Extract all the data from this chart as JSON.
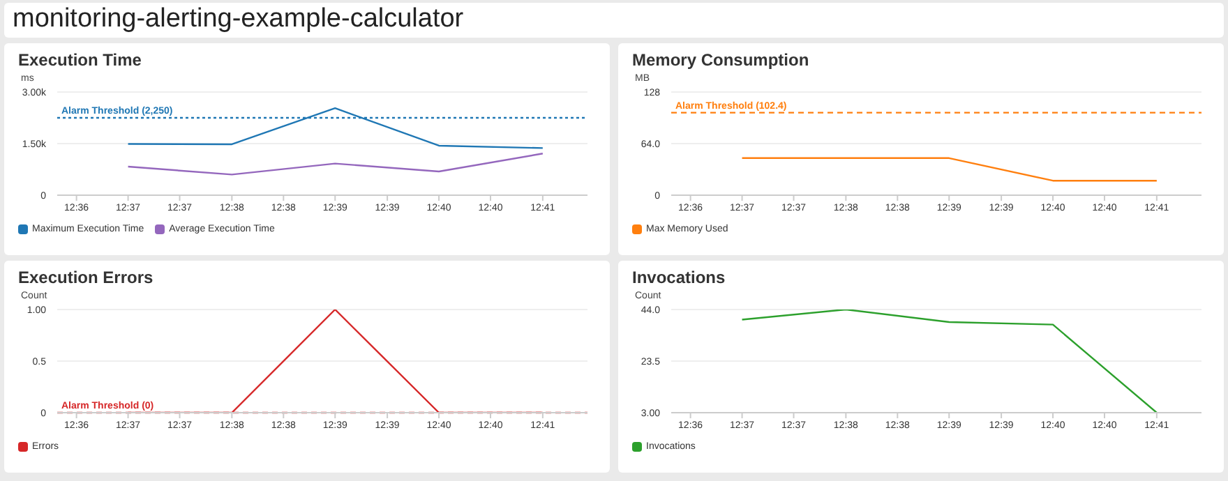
{
  "chart_data": [
    {
      "type": "line",
      "title": "Execution Time",
      "annotations": [
        "monitoring-alerting-example-calculator"
      ],
      "ylabel": "ms",
      "x": [
        12.6125,
        12.6292,
        12.6458,
        12.6625,
        12.6792
      ],
      "series": [
        {
          "name": "Maximum Execution Time",
          "color": "#1f77b4",
          "values": [
            1490,
            1480,
            2530,
            1440,
            1370
          ]
        },
        {
          "name": "Average Execution Time",
          "color": "#9467bd",
          "values": [
            830,
            600,
            920,
            690,
            1210
          ]
        }
      ],
      "xlim": [
        12.6011,
        12.6864
      ],
      "xticks": [
        {
          "value": 12.6042,
          "label": "12:36"
        },
        {
          "value": 12.6125,
          "label": "12:37"
        },
        {
          "value": 12.6208,
          "label": "12:37"
        },
        {
          "value": 12.6292,
          "label": "12:38"
        },
        {
          "value": 12.6375,
          "label": "12:38"
        },
        {
          "value": 12.6458,
          "label": "12:39"
        },
        {
          "value": 12.6542,
          "label": "12:39"
        },
        {
          "value": 12.6625,
          "label": "12:40"
        },
        {
          "value": 12.6708,
          "label": "12:40"
        },
        {
          "value": 12.6792,
          "label": "12:41"
        }
      ],
      "ylim": [
        0,
        3000
      ],
      "yticks": [
        0,
        {
          "value": 1500,
          "label": "1.50k"
        },
        {
          "value": 3000,
          "label": "3.00k"
        }
      ],
      "ref_lines": [
        {
          "axis": "y",
          "value": 2250,
          "label": "Alarm Threshold (2,250)",
          "color": "#1f77b4",
          "line_style": "dotted"
        }
      ],
      "grid": "y",
      "legend": "bottom left",
      "line_style": "solid"
    },
    {
      "type": "line",
      "title": "Memory Consumption",
      "ylabel": "MB",
      "x": [
        12.6125,
        12.6292,
        12.6458,
        12.6625,
        12.6792
      ],
      "series": [
        {
          "name": "Max Memory Used",
          "color": "#ff7f0e",
          "values": [
            46,
            46,
            46,
            18,
            18
          ]
        }
      ],
      "xlim": [
        12.6011,
        12.6864
      ],
      "xticks": [
        {
          "value": 12.6042,
          "label": "12:36"
        },
        {
          "value": 12.6125,
          "label": "12:37"
        },
        {
          "value": 12.6208,
          "label": "12:37"
        },
        {
          "value": 12.6292,
          "label": "12:38"
        },
        {
          "value": 12.6375,
          "label": "12:38"
        },
        {
          "value": 12.6458,
          "label": "12:39"
        },
        {
          "value": 12.6542,
          "label": "12:39"
        },
        {
          "value": 12.6625,
          "label": "12:40"
        },
        {
          "value": 12.6708,
          "label": "12:40"
        },
        {
          "value": 12.6792,
          "label": "12:41"
        }
      ],
      "ylim": [
        0,
        128
      ],
      "yticks": [
        0,
        {
          "value": 64,
          "label": "64.0"
        },
        128
      ],
      "ref_lines": [
        {
          "axis": "y",
          "value": 102.4,
          "label": "Alarm Threshold (102.4)",
          "color": "#ff7f0e",
          "line_style": "dashed"
        }
      ],
      "grid": "y",
      "legend": "bottom left",
      "line_style": "solid"
    },
    {
      "type": "line",
      "title": "Execution Errors",
      "ylabel": "Count",
      "x": [
        12.6125,
        12.6292,
        12.6458,
        12.6625,
        12.6792
      ],
      "series": [
        {
          "name": "Errors",
          "color": "#d62728",
          "values": [
            0,
            0,
            1,
            0,
            0
          ]
        }
      ],
      "xlim": [
        12.6011,
        12.6864
      ],
      "xticks": [
        {
          "value": 12.6042,
          "label": "12:36"
        },
        {
          "value": 12.6125,
          "label": "12:37"
        },
        {
          "value": 12.6208,
          "label": "12:37"
        },
        {
          "value": 12.6292,
          "label": "12:38"
        },
        {
          "value": 12.6375,
          "label": "12:38"
        },
        {
          "value": 12.6458,
          "label": "12:39"
        },
        {
          "value": 12.6542,
          "label": "12:39"
        },
        {
          "value": 12.6625,
          "label": "12:40"
        },
        {
          "value": 12.6708,
          "label": "12:40"
        },
        {
          "value": 12.6792,
          "label": "12:41"
        }
      ],
      "ylim": [
        0,
        1
      ],
      "yticks": [
        0,
        0.5,
        {
          "value": 1,
          "label": "1.00"
        }
      ],
      "ref_lines": [
        {
          "axis": "y",
          "value": 0,
          "label": "Alarm Threshold (0)",
          "color": "#d62728",
          "line_style": "dashed"
        }
      ],
      "grid": "y",
      "legend": "bottom left",
      "line_style": "solid"
    },
    {
      "type": "line",
      "title": "Invocations",
      "ylabel": "Count",
      "x": [
        12.6125,
        12.6292,
        12.6458,
        12.6625,
        12.6792
      ],
      "series": [
        {
          "name": "Invocations",
          "color": "#2ca02c",
          "values": [
            40,
            44,
            39,
            38,
            3
          ]
        }
      ],
      "xlim": [
        12.6011,
        12.6864
      ],
      "xticks": [
        {
          "value": 12.6042,
          "label": "12:36"
        },
        {
          "value": 12.6125,
          "label": "12:37"
        },
        {
          "value": 12.6208,
          "label": "12:37"
        },
        {
          "value": 12.6292,
          "label": "12:38"
        },
        {
          "value": 12.6375,
          "label": "12:38"
        },
        {
          "value": 12.6458,
          "label": "12:39"
        },
        {
          "value": 12.6542,
          "label": "12:39"
        },
        {
          "value": 12.6625,
          "label": "12:40"
        },
        {
          "value": 12.6708,
          "label": "12:40"
        },
        {
          "value": 12.6792,
          "label": "12:41"
        }
      ],
      "ylim": [
        3,
        44
      ],
      "yticks": [
        {
          "value": 3,
          "label": "3.00"
        },
        {
          "value": 23.5,
          "label": "23.5"
        },
        {
          "value": 44,
          "label": "44.0"
        }
      ],
      "grid": "y",
      "legend": "bottom left",
      "line_style": "solid"
    }
  ]
}
